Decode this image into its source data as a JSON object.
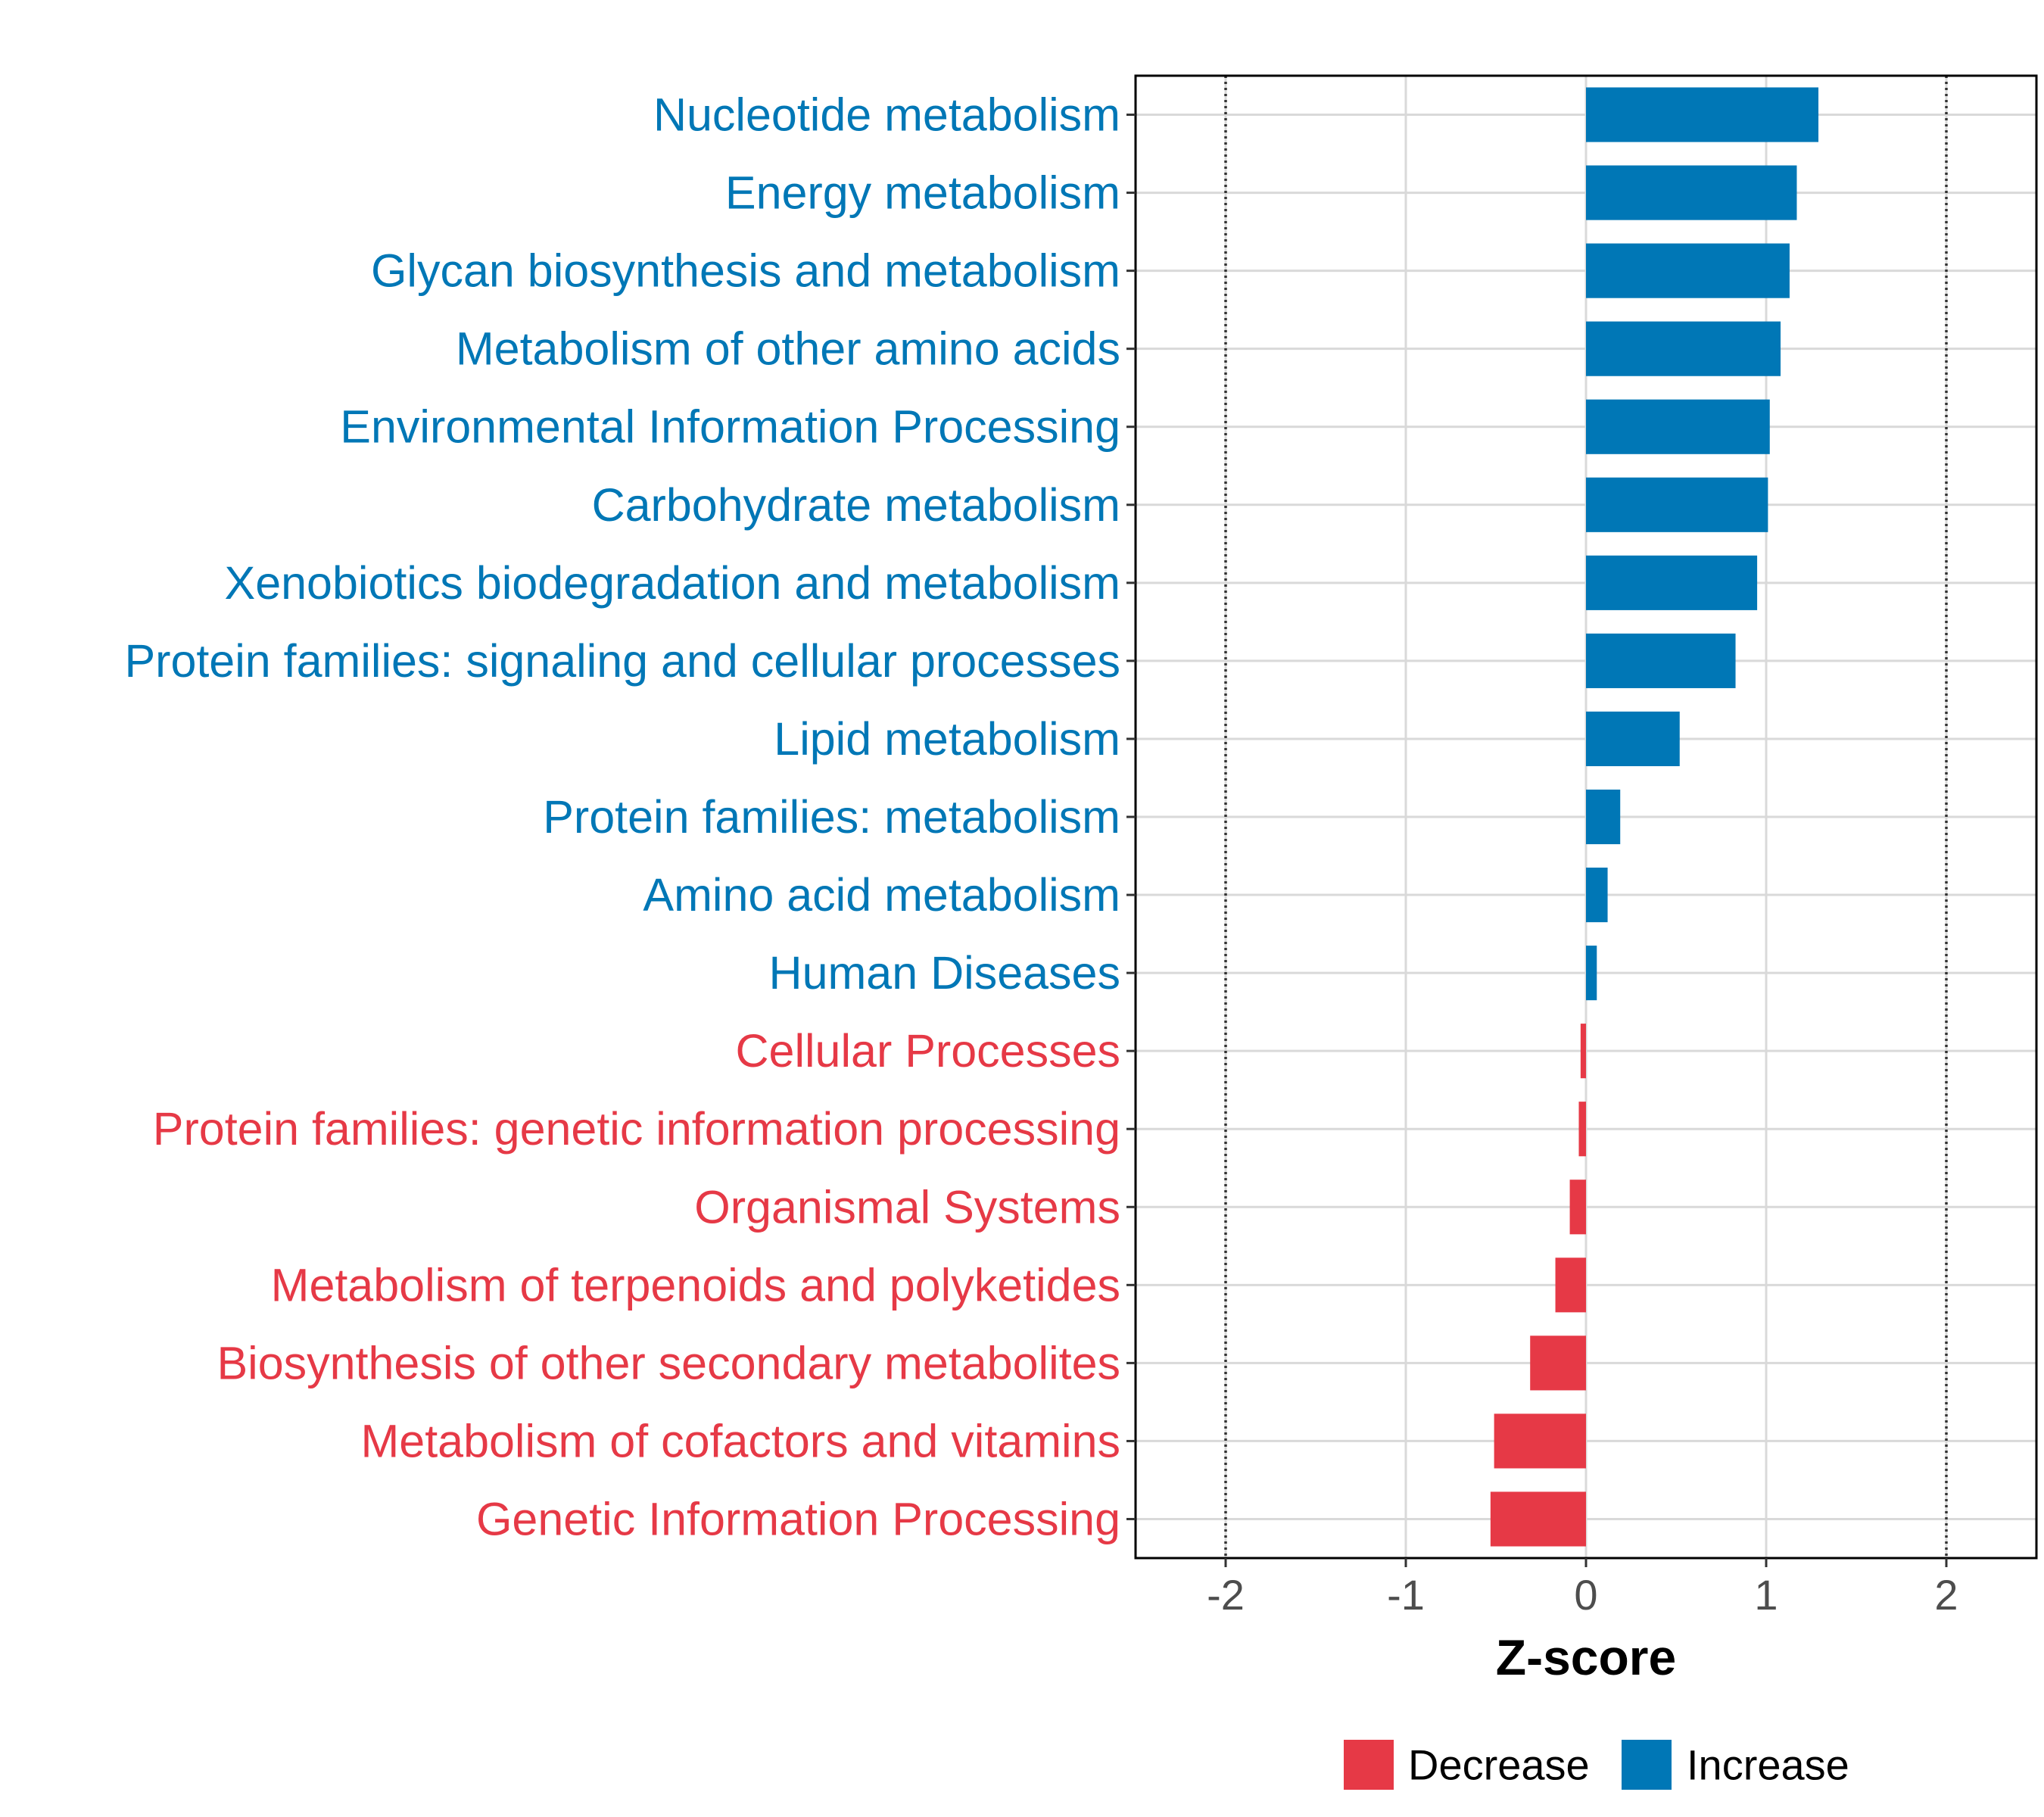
{
  "chart_data": {
    "type": "bar",
    "orientation": "horizontal",
    "title": "",
    "xlabel": "Z-score",
    "ylabel": "",
    "xlim": [
      -2.5,
      2.5
    ],
    "xticks": [
      -2,
      -1,
      0,
      1,
      2
    ],
    "xtick_labels": [
      "-2",
      "-1",
      "0",
      "1",
      "2"
    ],
    "reference_lines": [
      -2,
      2
    ],
    "grid": true,
    "legend_position": "bottom",
    "colors": {
      "Decrease": "#e63946",
      "Increase": "#0077b6"
    },
    "legend": [
      {
        "label": "Decrease",
        "group": "Decrease"
      },
      {
        "label": "Increase",
        "group": "Increase"
      }
    ],
    "categories": [
      "Nucleotide metabolism",
      "Energy metabolism",
      "Glycan biosynthesis and metabolism",
      "Metabolism of other amino acids",
      "Environmental Information Processing",
      "Carbohydrate metabolism",
      "Xenobiotics biodegradation and metabolism",
      "Protein families: signaling and cellular processes",
      "Lipid metabolism",
      "Protein families: metabolism",
      "Amino acid metabolism",
      "Human Diseases",
      "Cellular Processes",
      "Protein families: genetic information processing",
      "Organismal Systems",
      "Metabolism of terpenoids and polyketides",
      "Biosynthesis of other secondary metabolites",
      "Metabolism of cofactors and vitamins",
      "Genetic Information Processing"
    ],
    "values": [
      1.29,
      1.17,
      1.13,
      1.08,
      1.02,
      1.01,
      0.95,
      0.83,
      0.52,
      0.19,
      0.12,
      0.06,
      -0.03,
      -0.04,
      -0.09,
      -0.17,
      -0.31,
      -0.51,
      -0.53
    ],
    "groups": [
      "Increase",
      "Increase",
      "Increase",
      "Increase",
      "Increase",
      "Increase",
      "Increase",
      "Increase",
      "Increase",
      "Increase",
      "Increase",
      "Increase",
      "Decrease",
      "Decrease",
      "Decrease",
      "Decrease",
      "Decrease",
      "Decrease",
      "Decrease"
    ]
  }
}
